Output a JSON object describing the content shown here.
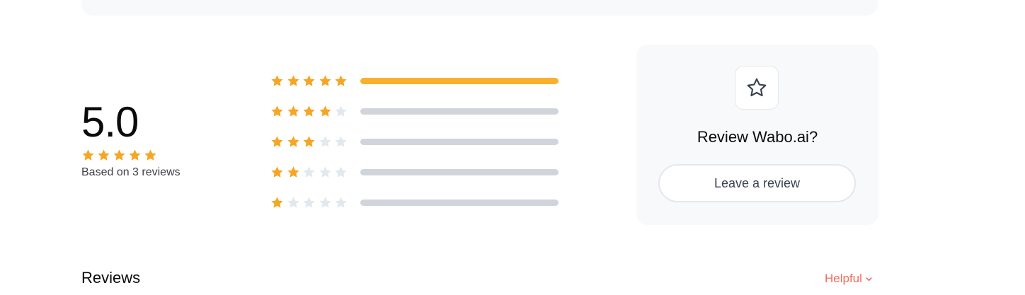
{
  "summary": {
    "average": "5.0",
    "stars_filled": 5,
    "based_on": "Based on 3 reviews"
  },
  "breakdown": [
    {
      "stars": 5,
      "fraction": 1.0
    },
    {
      "stars": 4,
      "fraction": 0.0
    },
    {
      "stars": 3,
      "fraction": 0.0
    },
    {
      "stars": 2,
      "fraction": 0.0
    },
    {
      "stars": 1,
      "fraction": 0.0
    }
  ],
  "review_card": {
    "icon": "star-outline-icon",
    "title": "Review Wabo.ai?",
    "button_label": "Leave a review"
  },
  "reviews_section": {
    "heading": "Reviews",
    "sort_label": "Helpful",
    "sort_icon": "chevron-down-icon"
  },
  "colors": {
    "star_filled": "#f5a623",
    "star_empty": "#e2e8f0",
    "bar_fill": "#fbb02d",
    "bar_track": "#d1d5db",
    "accent": "#f26b5b"
  }
}
